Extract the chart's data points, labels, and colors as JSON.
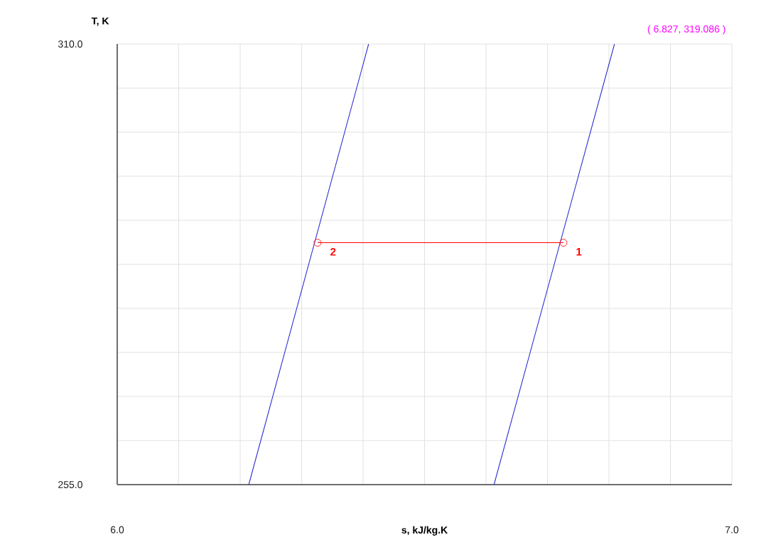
{
  "chart_data": {
    "type": "line",
    "xlabel": "s, kJ/kg.K",
    "ylabel": "T, K",
    "xlim": [
      6.0,
      7.0
    ],
    "ylim": [
      255.0,
      310.0
    ],
    "xticks": [
      {
        "value": 6.0,
        "label": "6.0"
      },
      {
        "value": 6.1,
        "label": null
      },
      {
        "value": 6.2,
        "label": null
      },
      {
        "value": 6.3,
        "label": null
      },
      {
        "value": 6.4,
        "label": null
      },
      {
        "value": 6.5,
        "label": null
      },
      {
        "value": 6.6,
        "label": null
      },
      {
        "value": 6.7,
        "label": null
      },
      {
        "value": 6.8,
        "label": null
      },
      {
        "value": 6.9,
        "label": null
      },
      {
        "value": 7.0,
        "label": "7.0"
      }
    ],
    "yticks": [
      {
        "value": 255.0,
        "label": "255.0"
      },
      {
        "value": 260.5,
        "label": null
      },
      {
        "value": 266.0,
        "label": null
      },
      {
        "value": 271.5,
        "label": null
      },
      {
        "value": 277.0,
        "label": null
      },
      {
        "value": 282.5,
        "label": null
      },
      {
        "value": 288.0,
        "label": null
      },
      {
        "value": 293.5,
        "label": null
      },
      {
        "value": 299.0,
        "label": null
      },
      {
        "value": 304.5,
        "label": null
      },
      {
        "value": 310.0,
        "label": "310.0"
      }
    ],
    "grid": true,
    "series": [
      {
        "color": "#2020d0",
        "x": [
          6.214,
          6.409
        ],
        "values": [
          255.0,
          310.0
        ]
      },
      {
        "color": "#2020d0",
        "x": [
          6.613,
          6.809
        ],
        "values": [
          255.0,
          310.0
        ]
      },
      {
        "color": "#ff0000",
        "x": [
          6.326,
          6.726
        ],
        "values": [
          285.2,
          285.2
        ],
        "marker": "circle"
      }
    ],
    "annotations": [
      {
        "text": "1",
        "x": 6.726,
        "y": 285.2
      },
      {
        "text": "2",
        "x": 6.326,
        "y": 285.2
      },
      "( 6.827, 319.086 )"
    ]
  }
}
